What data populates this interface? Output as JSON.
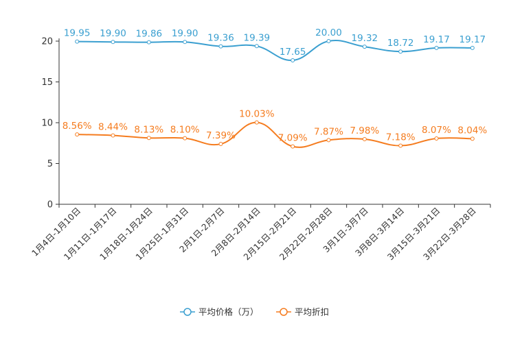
{
  "chart_data": {
    "type": "line",
    "title": "",
    "xlabel": "",
    "ylabel": "",
    "ylim": [
      0,
      20
    ],
    "yticks": [
      0,
      5,
      10,
      15,
      20
    ],
    "categories": [
      "1月4日-1月10日",
      "1月11日-1月17日",
      "1月18日-1月24日",
      "1月25日-1月31日",
      "2月1日-2月7日",
      "2月8日-2月14日",
      "2月15日-2月21日",
      "2月22日-2月28日",
      "3月1日-3月7日",
      "3月8日-3月14日",
      "3月15日-3月21日",
      "3月22日-3月28日"
    ],
    "series": [
      {
        "name": "平均价格（万）",
        "color": "#3a9fd0",
        "values": [
          19.95,
          19.9,
          19.86,
          19.9,
          19.36,
          19.39,
          17.65,
          20.0,
          19.32,
          18.72,
          19.17,
          19.17
        ],
        "labels": [
          "19.95",
          "19.90",
          "19.86",
          "19.90",
          "19.36",
          "19.39",
          "17.65",
          "20.00",
          "19.32",
          "18.72",
          "19.17",
          "19.17"
        ]
      },
      {
        "name": "平均折扣",
        "color": "#f57c1f",
        "values": [
          8.56,
          8.44,
          8.13,
          8.1,
          7.39,
          10.03,
          7.09,
          7.87,
          7.98,
          7.18,
          8.07,
          8.04
        ],
        "labels": [
          "8.56%",
          "8.44%",
          "8.13%",
          "8.10%",
          "7.39%",
          "10.03%",
          "7.09%",
          "7.87%",
          "7.98%",
          "7.18%",
          "8.07%",
          "8.04%"
        ]
      }
    ],
    "legend_position": "bottom-center",
    "grid": false
  }
}
